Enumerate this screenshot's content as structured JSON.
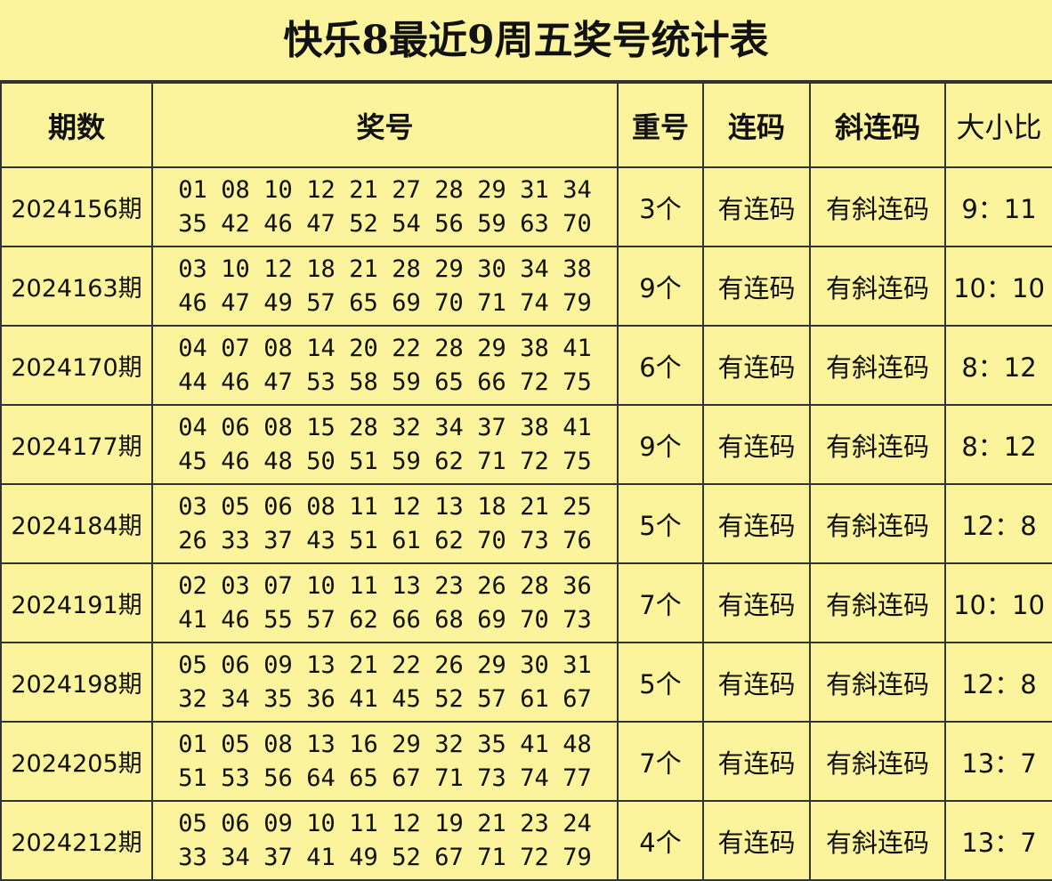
{
  "title": "快乐8最近9周五奖号统计表",
  "headers": [
    "期数",
    "奖号",
    "重号",
    "连码",
    "斜连码",
    "大小比"
  ],
  "rows": [
    {
      "period": "2024156期",
      "numbers": [
        "01",
        "08",
        "10",
        "12",
        "21",
        "27",
        "28",
        "29",
        "31",
        "34",
        "35",
        "42",
        "46",
        "47",
        "52",
        "54",
        "56",
        "59",
        "63",
        "70"
      ],
      "repeat": "3个",
      "consecutive": "有连码",
      "diagonal": "有斜连码",
      "ratio": "9：11"
    },
    {
      "period": "2024163期",
      "numbers": [
        "03",
        "10",
        "12",
        "18",
        "21",
        "28",
        "29",
        "30",
        "34",
        "38",
        "46",
        "47",
        "49",
        "57",
        "65",
        "69",
        "70",
        "71",
        "74",
        "79"
      ],
      "repeat": "9个",
      "consecutive": "有连码",
      "diagonal": "有斜连码",
      "ratio": "10：10"
    },
    {
      "period": "2024170期",
      "numbers": [
        "04",
        "07",
        "08",
        "14",
        "20",
        "22",
        "28",
        "29",
        "38",
        "41",
        "44",
        "46",
        "47",
        "53",
        "58",
        "59",
        "65",
        "66",
        "72",
        "75"
      ],
      "repeat": "6个",
      "consecutive": "有连码",
      "diagonal": "有斜连码",
      "ratio": "8：12"
    },
    {
      "period": "2024177期",
      "numbers": [
        "04",
        "06",
        "08",
        "15",
        "28",
        "32",
        "34",
        "37",
        "38",
        "41",
        "45",
        "46",
        "48",
        "50",
        "51",
        "59",
        "62",
        "71",
        "72",
        "75"
      ],
      "repeat": "9个",
      "consecutive": "有连码",
      "diagonal": "有斜连码",
      "ratio": "8：12"
    },
    {
      "period": "2024184期",
      "numbers": [
        "03",
        "05",
        "06",
        "08",
        "11",
        "12",
        "13",
        "18",
        "21",
        "25",
        "26",
        "33",
        "37",
        "43",
        "51",
        "61",
        "62",
        "70",
        "73",
        "76"
      ],
      "repeat": "5个",
      "consecutive": "有连码",
      "diagonal": "有斜连码",
      "ratio": "12：8"
    },
    {
      "period": "2024191期",
      "numbers": [
        "02",
        "03",
        "07",
        "10",
        "11",
        "13",
        "23",
        "26",
        "28",
        "36",
        "41",
        "46",
        "55",
        "57",
        "62",
        "66",
        "68",
        "69",
        "70",
        "73"
      ],
      "repeat": "7个",
      "consecutive": "有连码",
      "diagonal": "有斜连码",
      "ratio": "10：10"
    },
    {
      "period": "2024198期",
      "numbers": [
        "05",
        "06",
        "09",
        "13",
        "21",
        "22",
        "26",
        "29",
        "30",
        "31",
        "32",
        "34",
        "35",
        "36",
        "41",
        "45",
        "52",
        "57",
        "61",
        "67"
      ],
      "repeat": "5个",
      "consecutive": "有连码",
      "diagonal": "有斜连码",
      "ratio": "12：8"
    },
    {
      "period": "2024205期",
      "numbers": [
        "01",
        "05",
        "08",
        "13",
        "16",
        "29",
        "32",
        "35",
        "41",
        "48",
        "51",
        "53",
        "56",
        "64",
        "65",
        "67",
        "71",
        "73",
        "74",
        "77"
      ],
      "repeat": "7个",
      "consecutive": "有连码",
      "diagonal": "有斜连码",
      "ratio": "13：7"
    },
    {
      "period": "2024212期",
      "numbers": [
        "05",
        "06",
        "09",
        "10",
        "11",
        "12",
        "19",
        "21",
        "23",
        "24",
        "33",
        "34",
        "37",
        "41",
        "49",
        "52",
        "67",
        "71",
        "72",
        "79"
      ],
      "repeat": "4个",
      "consecutive": "有连码",
      "diagonal": "有斜连码",
      "ratio": "13：7"
    }
  ]
}
